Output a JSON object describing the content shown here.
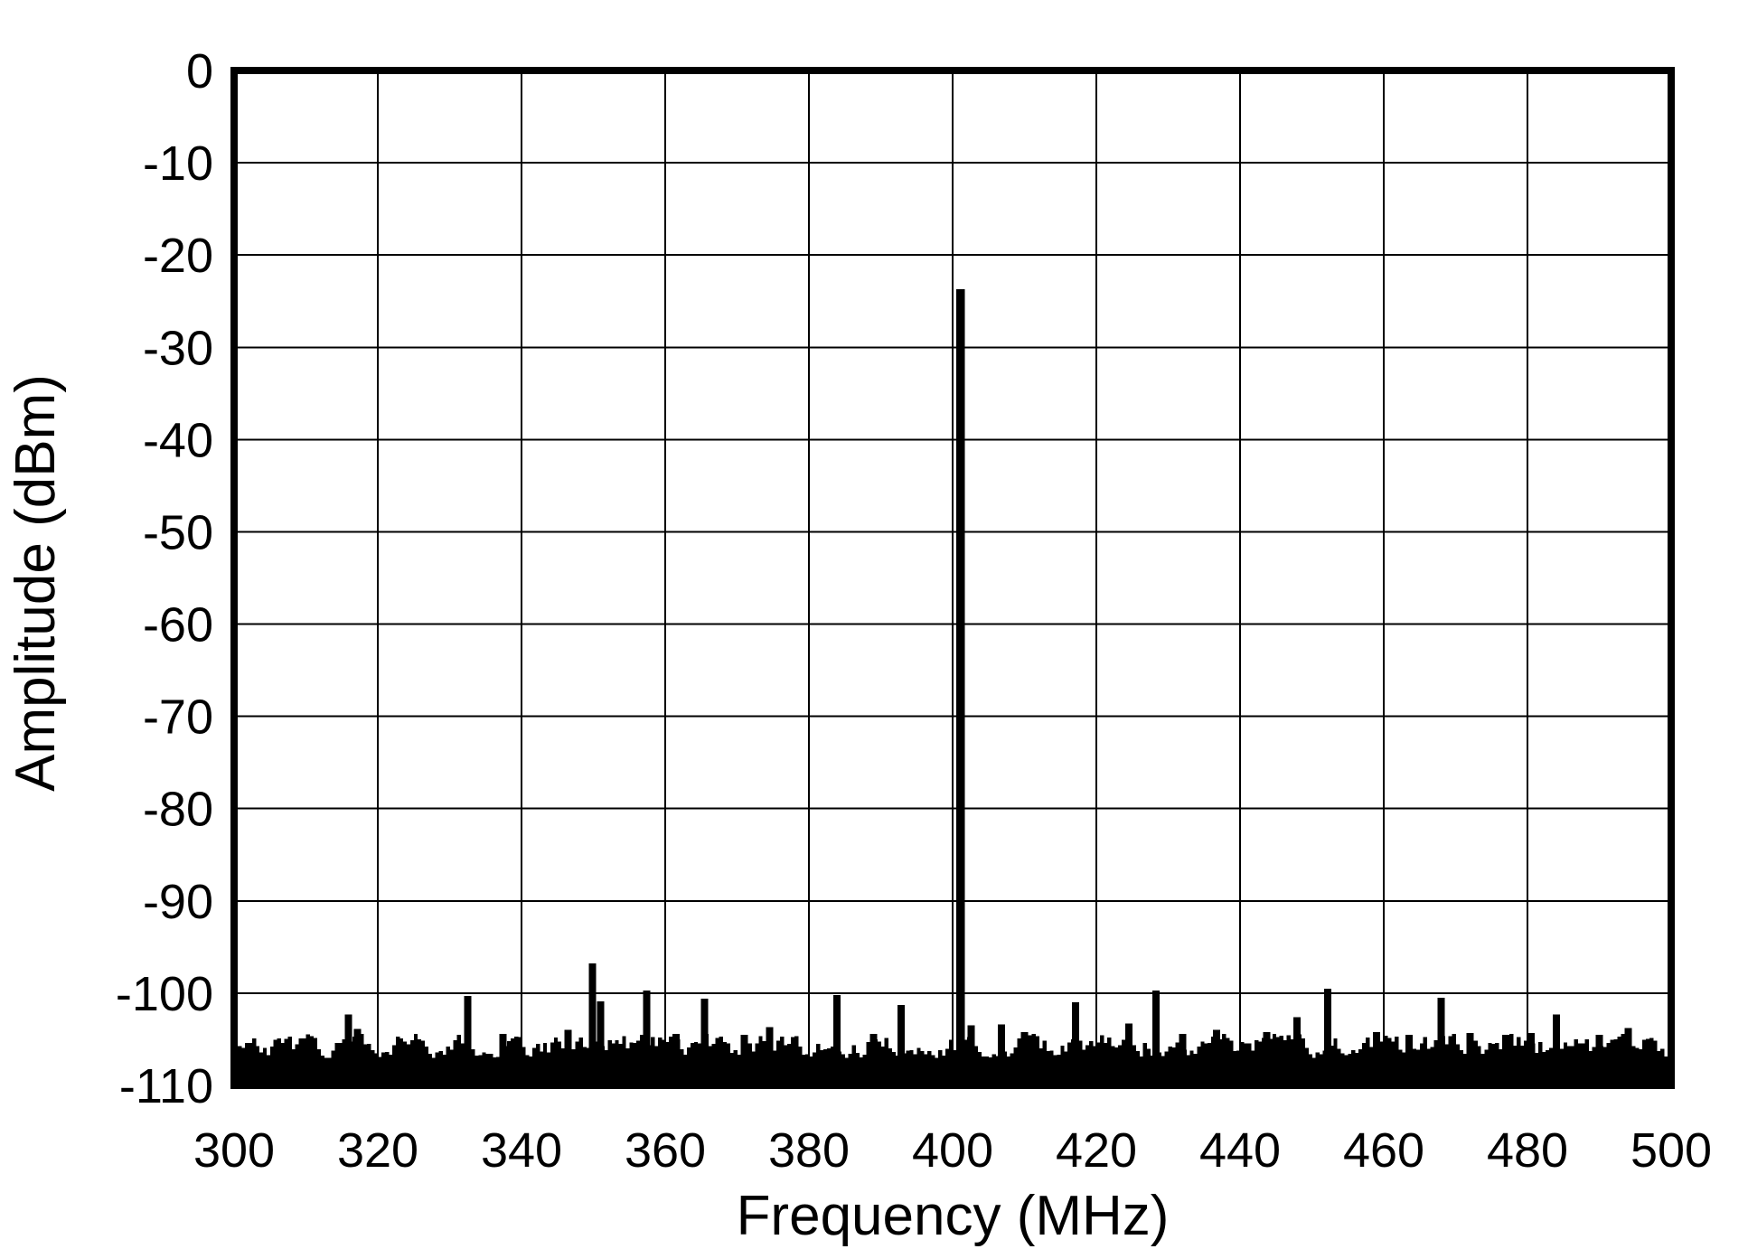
{
  "chart_data": {
    "type": "bar",
    "subtype": "frequency-spectrum",
    "title": "",
    "xlabel": "Frequency (MHz)",
    "ylabel": "Amplitude (dBm)",
    "xlim": [
      300,
      500
    ],
    "ylim": [
      -110,
      0
    ],
    "x_ticks": [
      300,
      320,
      340,
      360,
      380,
      400,
      420,
      440,
      460,
      480,
      500
    ],
    "y_ticks": [
      0,
      -10,
      -20,
      -30,
      -40,
      -50,
      -60,
      -70,
      -80,
      -90,
      -100,
      -110
    ],
    "grid": "on",
    "legend": "none",
    "colors": {
      "foreground": "#000000",
      "background": "#ffffff",
      "grid": "#000000"
    },
    "main_peak": {
      "freq_mhz": 401.1,
      "amplitude_dbm": -23.7,
      "width_mhz": 1.2
    },
    "spurs": [
      [
        315.9,
        -102.3
      ],
      [
        317.2,
        -103.9
      ],
      [
        332.5,
        -100.3
      ],
      [
        337.4,
        -104.4
      ],
      [
        346.5,
        -104.0
      ],
      [
        349.9,
        -96.8
      ],
      [
        351.0,
        -100.9
      ],
      [
        357.4,
        -99.7
      ],
      [
        361.5,
        -104.4
      ],
      [
        365.5,
        -100.6
      ],
      [
        371.0,
        -104.5
      ],
      [
        374.5,
        -103.7
      ],
      [
        383.9,
        -100.2
      ],
      [
        389.0,
        -104.4
      ],
      [
        392.8,
        -101.3
      ],
      [
        402.6,
        -103.5
      ],
      [
        406.8,
        -103.4
      ],
      [
        410.0,
        -104.2
      ],
      [
        417.1,
        -101.0
      ],
      [
        424.5,
        -103.3
      ],
      [
        428.3,
        -99.7
      ],
      [
        432.0,
        -104.4
      ],
      [
        436.7,
        -104.0
      ],
      [
        443.7,
        -104.2
      ],
      [
        447.9,
        -102.6
      ],
      [
        452.2,
        -99.5
      ],
      [
        459.0,
        -104.2
      ],
      [
        463.5,
        -104.5
      ],
      [
        468.0,
        -100.5
      ],
      [
        472.0,
        -104.3
      ],
      [
        477.0,
        -104.5
      ],
      [
        480.5,
        -104.3
      ],
      [
        484.0,
        -102.3
      ],
      [
        490.0,
        -104.5
      ],
      [
        494.0,
        -103.8
      ]
    ],
    "noise_floor": {
      "top_range_dbm": [
        -107.0,
        -104.4
      ],
      "extends_to_dbm": -110,
      "step_mhz": 0.5,
      "seed": 20
    }
  }
}
